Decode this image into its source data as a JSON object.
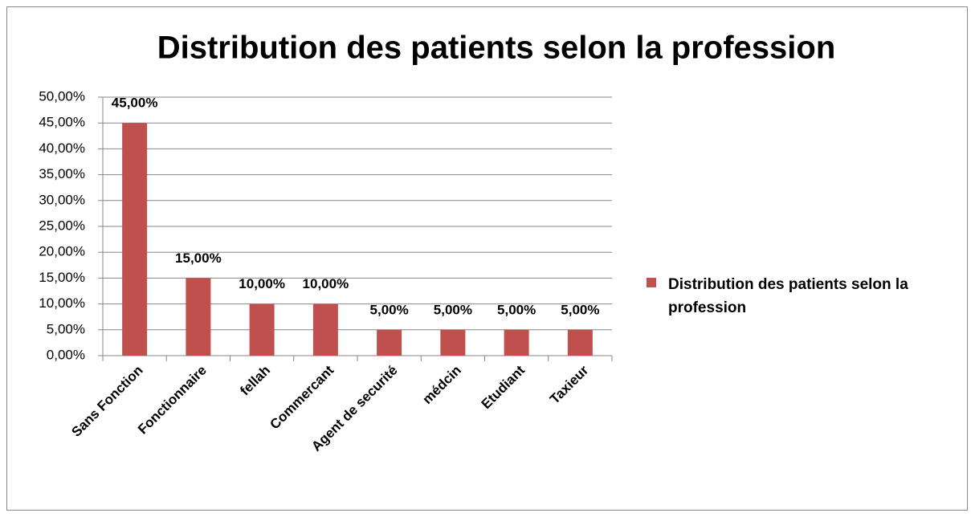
{
  "chart_data": {
    "type": "bar",
    "title": "Distribution des patients selon la profession",
    "categories": [
      "Sans Fonction",
      "Fonctionnaire",
      "fellah",
      "Commercant",
      "Agent de securité",
      "médcin",
      "Etudiant",
      "Taxieur"
    ],
    "series": [
      {
        "name": "Distribution des patients selon la profession",
        "color": "#c0504d",
        "values": [
          45,
          15,
          10,
          10,
          5,
          5,
          5,
          5
        ],
        "value_labels": [
          "45,00%",
          "15,00%",
          "10,00%",
          "10,00%",
          "5,00%",
          "5,00%",
          "5,00%",
          "5,00%"
        ]
      }
    ],
    "ylim": [
      0,
      50
    ],
    "yticks": [
      {
        "value": 0,
        "label": "0,00%"
      },
      {
        "value": 5,
        "label": "5,00%"
      },
      {
        "value": 10,
        "label": "10,00%"
      },
      {
        "value": 15,
        "label": "15,00%"
      },
      {
        "value": 20,
        "label": "20,00%"
      },
      {
        "value": 25,
        "label": "25,00%"
      },
      {
        "value": 30,
        "label": "30,00%"
      },
      {
        "value": 35,
        "label": "35,00%"
      },
      {
        "value": 40,
        "label": "40,00%"
      },
      {
        "value": 45,
        "label": "45,00%"
      },
      {
        "value": 50,
        "label": "50,00%"
      }
    ],
    "grid": true,
    "legend": "right"
  }
}
